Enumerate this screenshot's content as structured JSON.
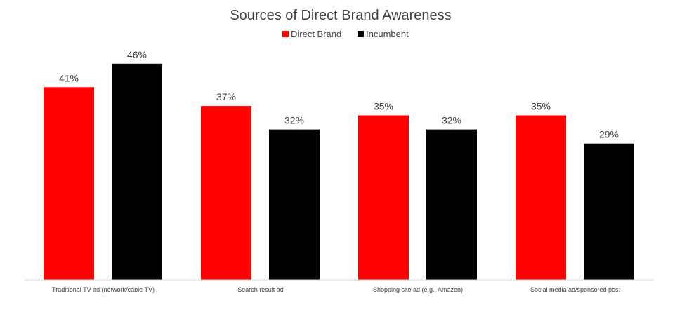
{
  "chart_data": {
    "type": "bar",
    "title": "Sources of Direct Brand Awareness",
    "categories": [
      "Traditional TV ad (network/cable TV)",
      "Search result ad",
      "Shopping site ad (e.g., Amazon)",
      "Social media ad/sponsored post"
    ],
    "series": [
      {
        "name": "Direct Brand",
        "values": [
          41,
          37,
          35,
          35
        ],
        "labels": [
          "41%",
          "37%",
          "35%",
          "35%"
        ],
        "color": "#ff0000"
      },
      {
        "name": "Incumbent",
        "values": [
          46,
          32,
          32,
          29
        ],
        "labels": [
          "46%",
          "32%",
          "32%",
          "29%"
        ],
        "color": "#000000"
      }
    ],
    "xlabel": "",
    "ylabel": "",
    "ylim": [
      0,
      50
    ],
    "grid": false,
    "legend": "top-center",
    "value_format": "percent"
  }
}
